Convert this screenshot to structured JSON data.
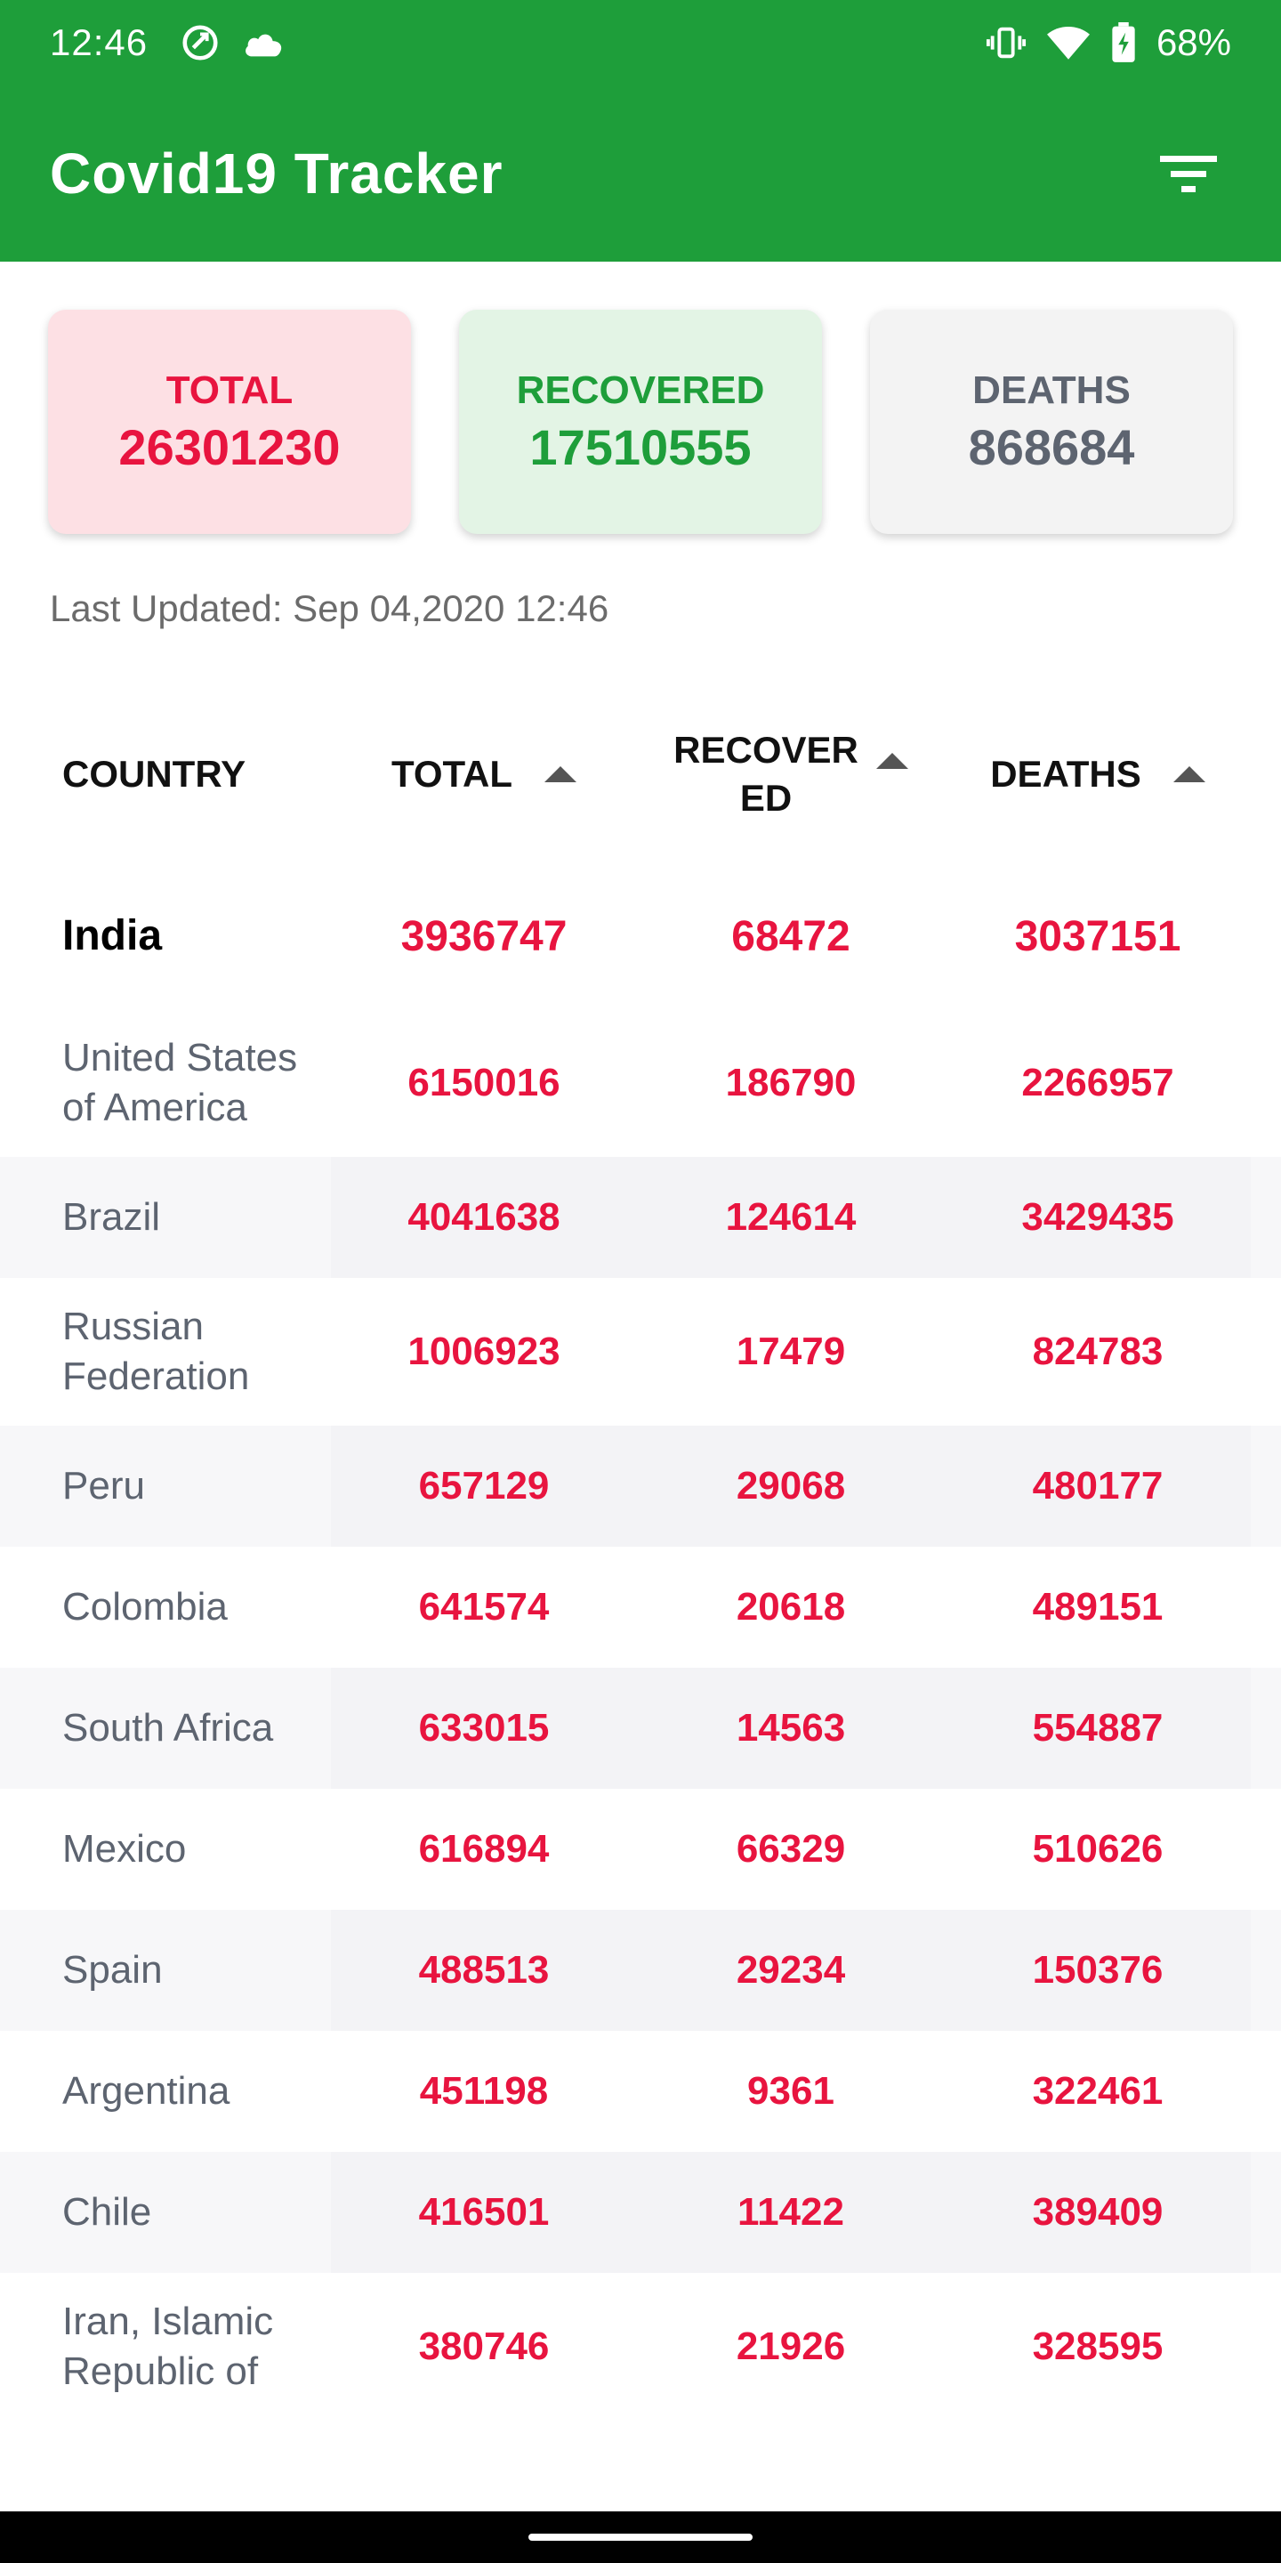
{
  "status_bar": {
    "time": "12:46",
    "battery": "68%",
    "icons": [
      "data-saver-icon",
      "cloud-icon",
      "vibrate-icon",
      "wifi-icon",
      "battery-charging-icon"
    ]
  },
  "app_bar": {
    "title": "Covid19 Tracker",
    "filter_icon": "filter-icon"
  },
  "summary": {
    "total": {
      "label": "TOTAL",
      "value": "26301230",
      "bg": "#fde0e4",
      "color": "#e8143f"
    },
    "recovered": {
      "label": "RECOVERED",
      "value": "17510555",
      "bg": "#e3f4e5",
      "color": "#1e9e3a"
    },
    "deaths": {
      "label": "DEATHS",
      "value": "868684",
      "bg": "#f3f3f3",
      "color": "#5d6470"
    }
  },
  "last_updated": "Last Updated: Sep 04,2020 12:46",
  "table": {
    "headers": {
      "country": "COUNTRY",
      "total": "TOTAL",
      "recovered_line1": "RECOVER",
      "recovered_line2": "ED",
      "deaths": "DEATHS"
    },
    "rows": [
      {
        "country": "India",
        "total": "3936747",
        "recovered": "68472",
        "deaths": "3037151"
      },
      {
        "country": "United States of America",
        "total": "6150016",
        "recovered": "186790",
        "deaths": "2266957"
      },
      {
        "country": "Brazil",
        "total": "4041638",
        "recovered": "124614",
        "deaths": "3429435"
      },
      {
        "country": "Russian Federation",
        "total": "1006923",
        "recovered": "17479",
        "deaths": "824783"
      },
      {
        "country": "Peru",
        "total": "657129",
        "recovered": "29068",
        "deaths": "480177"
      },
      {
        "country": "Colombia",
        "total": "641574",
        "recovered": "20618",
        "deaths": "489151"
      },
      {
        "country": "South Africa",
        "total": "633015",
        "recovered": "14563",
        "deaths": "554887"
      },
      {
        "country": "Mexico",
        "total": "616894",
        "recovered": "66329",
        "deaths": "510626"
      },
      {
        "country": "Spain",
        "total": "488513",
        "recovered": "29234",
        "deaths": "150376"
      },
      {
        "country": "Argentina",
        "total": "451198",
        "recovered": "9361",
        "deaths": "322461"
      },
      {
        "country": "Chile",
        "total": "416501",
        "recovered": "11422",
        "deaths": "389409"
      },
      {
        "country": "Iran, Islamic Republic of",
        "total": "380746",
        "recovered": "21926",
        "deaths": "328595"
      }
    ]
  }
}
